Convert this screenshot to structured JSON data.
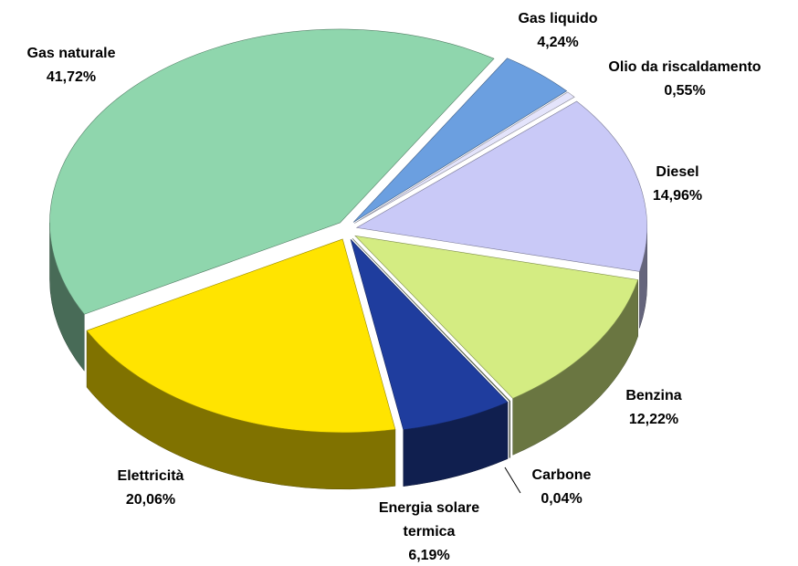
{
  "chart_data": {
    "type": "pie",
    "categories": [
      "Gas liquido",
      "Olio da riscaldamento",
      "Diesel",
      "Benzina",
      "Carbone",
      "Energia solare termica",
      "Elettricità",
      "Gas naturale"
    ],
    "values": [
      4.24,
      0.55,
      14.96,
      12.22,
      0.04,
      6.19,
      20.06,
      41.72
    ],
    "value_labels": [
      "4,24%",
      "0,55%",
      "14,96%",
      "12,22%",
      "0,04%",
      "6,19%",
      "20,06%",
      "41,72%"
    ],
    "colors": [
      "#6b9fe0",
      "#e4e4fb",
      "#c9c9f7",
      "#d4ec82",
      "#8c9c72",
      "#1f3d9e",
      "#ffe400",
      "#8fd6ad"
    ]
  }
}
